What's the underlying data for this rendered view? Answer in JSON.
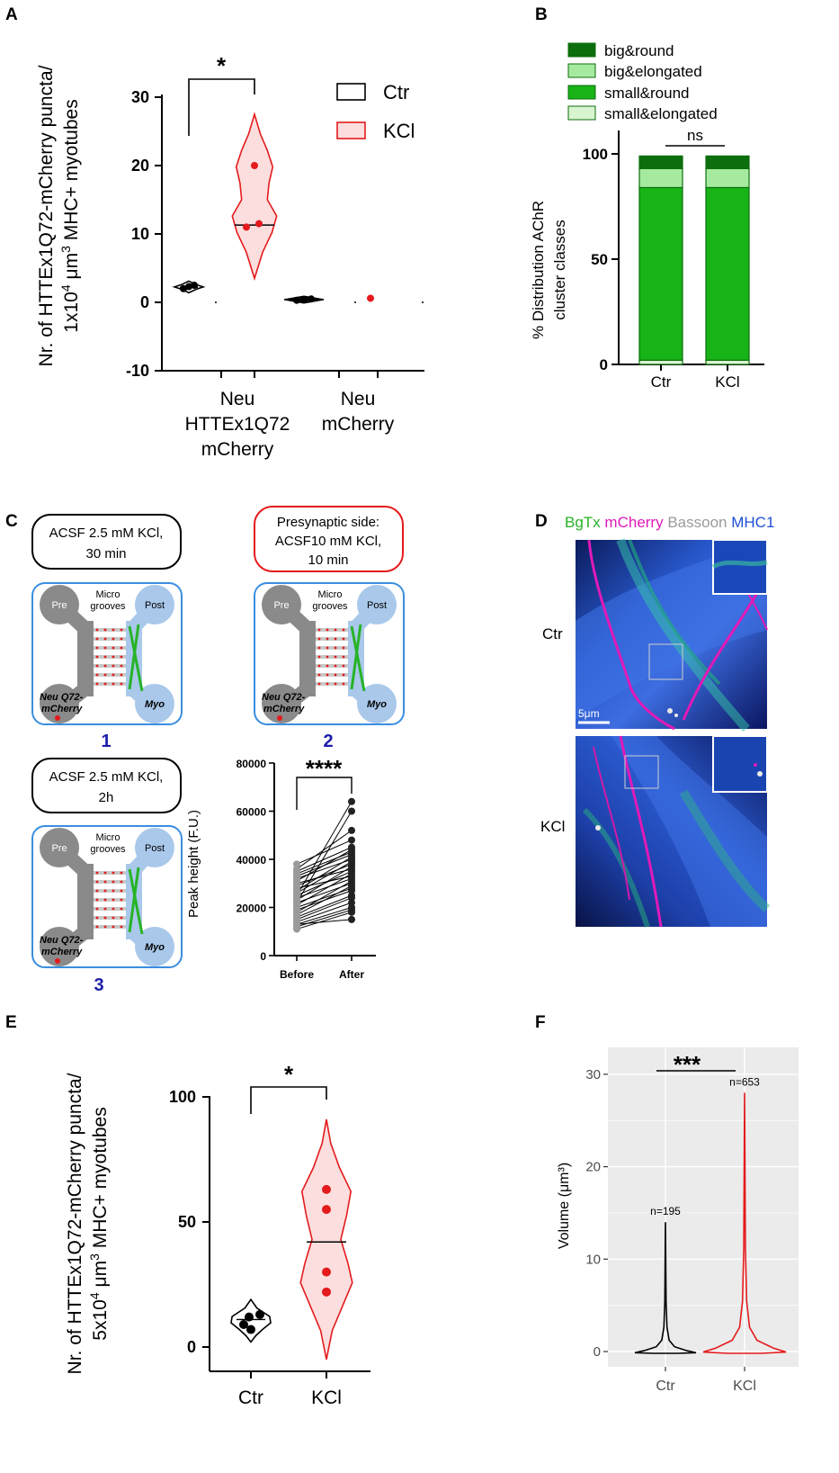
{
  "panels": {
    "A": "A",
    "B": "B",
    "C": "C",
    "D": "D",
    "E": "E",
    "F": "F"
  },
  "chart_data": [
    {
      "id": "A",
      "type": "violin",
      "ylabel_line1": "Nr. of HTTEx1Q72-mCherry puncta/",
      "ylabel_line2_prefix": "1x10",
      "ylabel_line2_exp": "4",
      "ylabel_line2_suffix": " μm",
      "ylabel_line2_exp2": "3",
      "ylabel_line2_rest": " MHC+ myotubes",
      "ylim": [
        -10,
        30
      ],
      "yticks": [
        "-10",
        "0",
        "10",
        "20",
        "30"
      ],
      "groups": [
        {
          "label_lines": [
            "Neu",
            "HTTEx1Q72",
            "mCherry"
          ]
        },
        {
          "label_lines": [
            "Neu",
            "mCherry"
          ]
        }
      ],
      "legend": [
        {
          "name": "Ctr",
          "color": "#000000",
          "fill": "#ffffff"
        },
        {
          "name": "KCl",
          "color": "#e41a1c",
          "fill": "#fcdede"
        }
      ],
      "series": [
        {
          "name": "Ctr",
          "group": 0,
          "points": [
            2.0,
            2.3,
            2.5
          ],
          "median": 2.2
        },
        {
          "name": "KCl",
          "group": 0,
          "points": [
            20.0,
            11.0,
            11.5
          ],
          "median": 11.3
        },
        {
          "name": "Ctr",
          "group": 1,
          "points": [
            0.3,
            0.4,
            0.5
          ],
          "median": 0.4
        },
        {
          "name": "KCl",
          "group": 1,
          "points": [
            0.6
          ],
          "median": 0.6
        }
      ],
      "significance": "*"
    },
    {
      "id": "B",
      "type": "stacked-bar",
      "ylabel_line1": "% Distribution AChR",
      "ylabel_line2": "cluster classes",
      "ylim": [
        0,
        100
      ],
      "yticks": [
        "0",
        "50",
        "100"
      ],
      "categories": [
        "Ctr",
        "KCl"
      ],
      "series": [
        {
          "name": "small&elongated",
          "values": [
            2,
            2
          ],
          "color": "#d8f5d0"
        },
        {
          "name": "small&round",
          "values": [
            82,
            82
          ],
          "color": "#17b317"
        },
        {
          "name": "big&elongated",
          "values": [
            9,
            9
          ],
          "color": "#a6eaa0"
        },
        {
          "name": "big&round",
          "values": [
            6,
            6
          ],
          "color": "#0c6e0c"
        }
      ],
      "legend_order": [
        "big&round",
        "big&elongated",
        "small&round",
        "small&elongated"
      ],
      "significance": "ns"
    },
    {
      "id": "C-plot",
      "type": "paired-scatter",
      "ylabel": "Peak height (F.U.)",
      "ylim": [
        0,
        80000
      ],
      "yticks": [
        "0",
        "20000",
        "40000",
        "60000",
        "80000"
      ],
      "categories": [
        "Before",
        "After"
      ],
      "pairs": [
        [
          38000,
          48000
        ],
        [
          36000,
          52000
        ],
        [
          35000,
          45000
        ],
        [
          34000,
          43000
        ],
        [
          33000,
          42000
        ],
        [
          32000,
          40000
        ],
        [
          31000,
          44000
        ],
        [
          30000,
          36000
        ],
        [
          29000,
          38000
        ],
        [
          28000,
          33000
        ],
        [
          27000,
          41000
        ],
        [
          26000,
          39000
        ],
        [
          25000,
          35000
        ],
        [
          24000,
          32000
        ],
        [
          23000,
          37000
        ],
        [
          22000,
          30000
        ],
        [
          21000,
          34000
        ],
        [
          20000,
          28000
        ],
        [
          19000,
          27000
        ],
        [
          18000,
          31000
        ],
        [
          17000,
          29000
        ],
        [
          16000,
          25000
        ],
        [
          15000,
          24000
        ],
        [
          14000,
          22000
        ],
        [
          13000,
          20000
        ],
        [
          12000,
          19000
        ],
        [
          11000,
          18000
        ],
        [
          25000,
          64000
        ],
        [
          22000,
          60000
        ],
        [
          13000,
          15000
        ]
      ],
      "significance": "****"
    },
    {
      "id": "E",
      "type": "violin",
      "ylabel_line1": "Nr. of HTTEx1Q72-mCherry puncta/",
      "ylabel_line2_prefix": "5x10",
      "ylabel_line2_exp": "4",
      "ylabel_line2_suffix": " μm",
      "ylabel_line2_exp2": "3",
      "ylabel_line2_rest": " MHC+ myotubes",
      "ylim": [
        0,
        100
      ],
      "yticks": [
        "0",
        "50",
        "100"
      ],
      "categories": [
        "Ctr",
        "KCl"
      ],
      "series": [
        {
          "name": "Ctr",
          "points": [
            13,
            12,
            9,
            7
          ],
          "median": 11
        },
        {
          "name": "KCl",
          "points": [
            63,
            55,
            30,
            22
          ],
          "median": 42
        }
      ],
      "significance": "*"
    },
    {
      "id": "F",
      "type": "violin",
      "ylabel": "Volume (μm³)",
      "ylim": [
        0,
        30
      ],
      "yticks": [
        "0",
        "10",
        "20",
        "30"
      ],
      "categories": [
        "Ctr",
        "KCl"
      ],
      "series": [
        {
          "name": "Ctr",
          "max": 14,
          "n_label": "n=195",
          "color": "#000000"
        },
        {
          "name": "KCl",
          "max": 28,
          "n_label": "n=653",
          "color": "#e41a1c"
        }
      ],
      "significance": "***"
    }
  ],
  "schematic": {
    "steps": [
      {
        "number": "1",
        "label_lines": [
          "ACSF 2.5 mM KCl,",
          "30 min"
        ],
        "border": "#000000"
      },
      {
        "number": "2",
        "label_lines": [
          "Presynaptic side:",
          "ACSF10 mM  KCl,",
          "10 min"
        ],
        "border": "#e41a1c"
      },
      {
        "number": "3",
        "label_lines": [
          "ACSF 2.5 mM KCl,",
          "2h"
        ],
        "border": "#000000"
      }
    ],
    "chamber": {
      "pre": "Pre",
      "post": "Post",
      "micro_lines": [
        "Micro",
        "grooves"
      ],
      "neu_lines": [
        "Neu Q72-",
        "mCherry"
      ],
      "myo": "Myo"
    }
  },
  "micrograph": {
    "legend": [
      {
        "text": "BgTx",
        "color": "#27b327"
      },
      {
        "text": "mCherry",
        "color": "#e01ab8"
      },
      {
        "text": "Bassoon",
        "color": "#9a9a9a"
      },
      {
        "text": "MHC1",
        "color": "#1f4fd8"
      }
    ],
    "rows": [
      "Ctr",
      "KCl"
    ],
    "scalebar": "5μm"
  }
}
